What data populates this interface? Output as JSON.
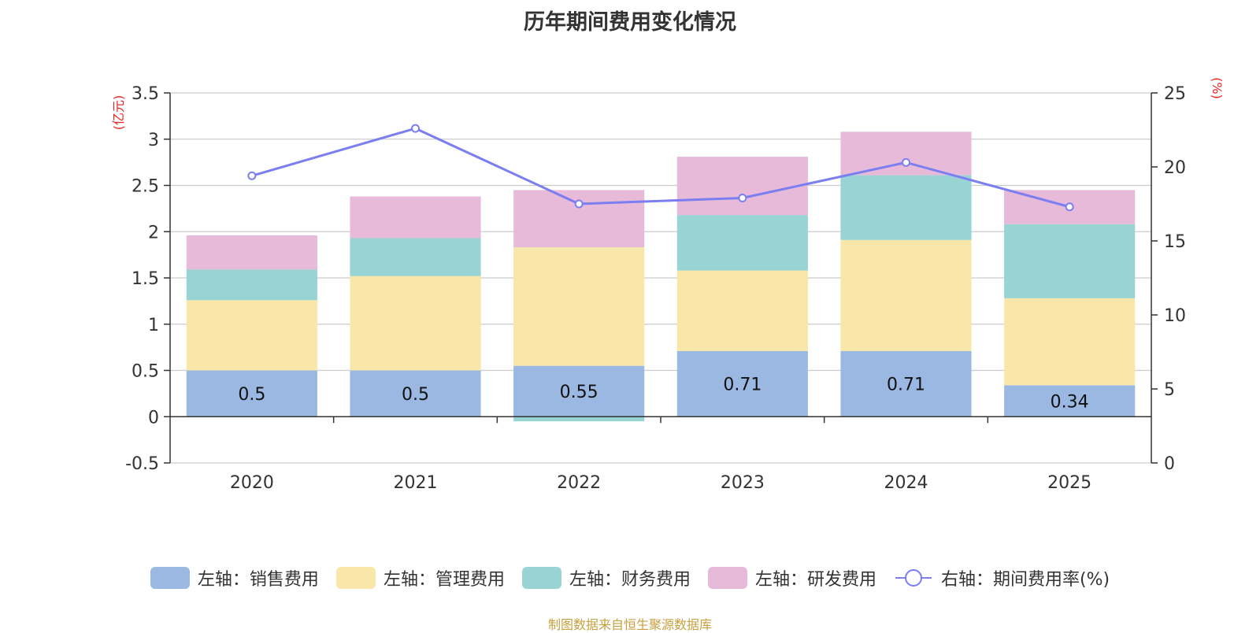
{
  "chart_data": {
    "type": "bar",
    "stacked": true,
    "title": "历年期间费用变化情况",
    "categories": [
      "2020",
      "2021",
      "2022",
      "2023",
      "2024",
      "2025"
    ],
    "left_axis": {
      "unit": "(亿元)",
      "ylim": [
        -0.5,
        3.5
      ],
      "ticks": [
        -0.5,
        0,
        0.5,
        1,
        1.5,
        2,
        2.5,
        3,
        3.5
      ],
      "tick_labels": [
        "-0.5",
        "0",
        "0.5",
        "1",
        "1.5",
        "2",
        "2.5",
        "3",
        "3.5"
      ]
    },
    "right_axis": {
      "unit": "(%)",
      "ylim": [
        0,
        25
      ],
      "ticks": [
        0,
        5,
        10,
        15,
        20,
        25
      ],
      "tick_labels": [
        "0",
        "5",
        "10",
        "15",
        "20",
        "25"
      ]
    },
    "series": [
      {
        "name": "左轴：销售费用",
        "axis": "left",
        "type": "bar",
        "color": "#9bb8e2",
        "values": [
          0.5,
          0.5,
          0.55,
          0.71,
          0.71,
          0.34
        ],
        "labels": [
          "0.5",
          "0.5",
          "0.55",
          "0.71",
          "0.71",
          "0.34"
        ]
      },
      {
        "name": "左轴：管理费用",
        "axis": "left",
        "type": "bar",
        "color": "#f8e7a8",
        "values": [
          0.76,
          1.02,
          1.28,
          0.87,
          1.2,
          0.94
        ]
      },
      {
        "name": "左轴：财务费用",
        "axis": "left",
        "type": "bar",
        "color": "#98d4d4",
        "values": [
          0.33,
          0.41,
          -0.05,
          0.6,
          0.7,
          0.8
        ]
      },
      {
        "name": "左轴：研发费用",
        "axis": "left",
        "type": "bar",
        "color": "#e7bad9",
        "values": [
          0.37,
          0.45,
          0.62,
          0.63,
          0.47,
          0.37
        ]
      },
      {
        "name": "右轴：期间费用率(%)",
        "axis": "right",
        "type": "line",
        "color": "#7a7ef0",
        "values": [
          19.4,
          22.6,
          17.5,
          17.9,
          20.3,
          17.3
        ]
      }
    ]
  },
  "source": "制图数据来自恒生聚源数据库"
}
